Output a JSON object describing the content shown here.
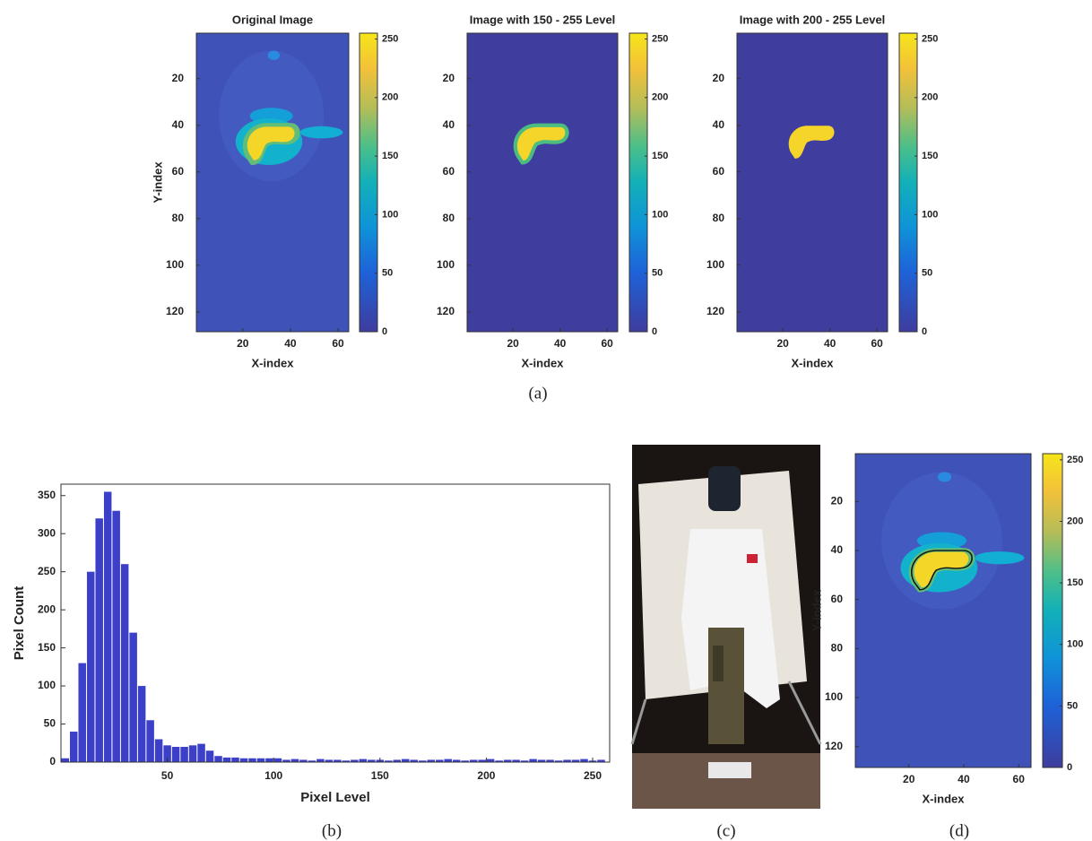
{
  "captions": [
    "(a)",
    "(b)",
    "(c)",
    "(d)"
  ],
  "chart_data": [
    {
      "type": "heatmap",
      "title": "Original Image",
      "x_label": "X-index",
      "y_label": "Y-index",
      "xlim": [
        0.5,
        64.5
      ],
      "ylim": [
        0.5,
        128.5
      ],
      "xticks": [
        20,
        40,
        60
      ],
      "yticks": [
        20,
        40,
        60,
        80,
        100,
        120
      ],
      "clim": [
        0,
        255
      ],
      "cticks": [
        0,
        50,
        100,
        150,
        200,
        250
      ]
    },
    {
      "type": "heatmap",
      "title": "Image with 150 - 255 Level",
      "x_label": "X-index",
      "xlim": [
        0.5,
        64.5
      ],
      "ylim": [
        0.5,
        128.5
      ],
      "xticks": [
        20,
        40,
        60
      ],
      "yticks": [
        20,
        40,
        60,
        80,
        100,
        120
      ],
      "clim": [
        0,
        255
      ],
      "cticks": [
        0,
        50,
        100,
        150,
        200,
        250
      ]
    },
    {
      "type": "heatmap",
      "title": "Image with 200 - 255 Level",
      "x_label": "X-index",
      "xlim": [
        0.5,
        64.5
      ],
      "ylim": [
        0.5,
        128.5
      ],
      "xticks": [
        20,
        40,
        60
      ],
      "yticks": [
        20,
        40,
        60,
        80,
        100,
        120
      ],
      "clim": [
        0,
        255
      ],
      "cticks": [
        0,
        50,
        100,
        150,
        200,
        250
      ]
    },
    {
      "type": "histogram",
      "x_label": "Pixel Level",
      "y_label": "Pixel Count",
      "color": "#3c3fc8",
      "bins": [
        0,
        4,
        8,
        12,
        16,
        20,
        24,
        28,
        32,
        36,
        40,
        44,
        48,
        52,
        56,
        60,
        64,
        68,
        72,
        76,
        80,
        84,
        88,
        92,
        96,
        100,
        104,
        108,
        112,
        116,
        120,
        124,
        128,
        132,
        136,
        140,
        144,
        148,
        152,
        156,
        160,
        164,
        168,
        172,
        176,
        180,
        184,
        188,
        192,
        196,
        200,
        204,
        208,
        212,
        216,
        220,
        224,
        228,
        232,
        236,
        240,
        244,
        248,
        252,
        256
      ],
      "values": [
        5,
        40,
        130,
        250,
        320,
        355,
        330,
        260,
        170,
        100,
        55,
        30,
        22,
        20,
        20,
        22,
        24,
        15,
        8,
        6,
        6,
        5,
        5,
        5,
        5,
        5,
        3,
        4,
        3,
        2,
        4,
        3,
        3,
        2,
        3,
        4,
        3,
        3,
        2,
        3,
        4,
        3,
        2,
        3,
        3,
        4,
        3,
        2,
        3,
        3,
        4,
        2,
        3,
        3,
        2,
        4,
        3,
        3,
        2,
        3,
        3,
        4,
        2,
        3
      ],
      "xlim": [
        0,
        258
      ],
      "ylim": [
        0,
        365
      ],
      "xticks": [
        50,
        100,
        150,
        200,
        250
      ],
      "yticks": [
        0,
        50,
        100,
        150,
        200,
        250,
        300,
        350
      ]
    },
    {
      "type": "heatmap",
      "x_label": "X-index",
      "y_label": "Y-index",
      "xlim": [
        0.5,
        64.5
      ],
      "ylim": [
        0.5,
        128.5
      ],
      "xticks": [
        20,
        40,
        60
      ],
      "yticks": [
        20,
        40,
        60,
        80,
        100,
        120
      ],
      "clim": [
        0,
        255
      ],
      "cticks": [
        0,
        50,
        100,
        150,
        200,
        250
      ]
    }
  ]
}
